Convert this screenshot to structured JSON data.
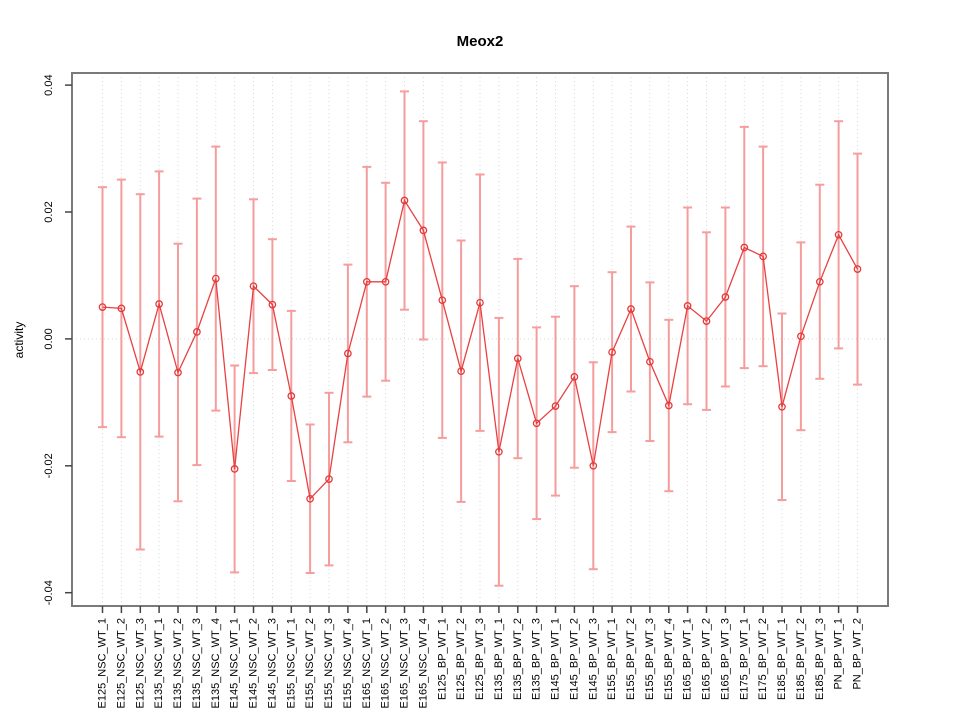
{
  "title": "Meox2",
  "chart_data": {
    "type": "scatter",
    "title": "Meox2",
    "xlabel": "",
    "ylabel": "activity",
    "legend": "none",
    "grid": "vertical dotted gridline at every category; dotted horizontal line at y=0 only",
    "ylim": [
      -0.0421,
      0.0419
    ],
    "yticks": [
      0.04,
      0.02,
      0,
      -0.02,
      -0.04
    ],
    "ytick_labels": [
      "0.04",
      "0.02",
      "0.00",
      "-0.02",
      "-0.04"
    ],
    "point_style": "open circles joined by line segments, vertical error bars with caps",
    "colors": {
      "line": "#e94141",
      "point": "#e23b3b",
      "error_bar": "#f58c8c",
      "border": "#7a7a7a",
      "gridline": "#d9d9d9",
      "tick": "#444444"
    },
    "categories": [
      "E125_NSC_WT_1",
      "E125_NSC_WT_2",
      "E125_NSC_WT_3",
      "E135_NSC_WT_1",
      "E135_NSC_WT_2",
      "E135_NSC_WT_3",
      "E135_NSC_WT_4",
      "E145_NSC_WT_1",
      "E145_NSC_WT_2",
      "E145_NSC_WT_3",
      "E155_NSC_WT_1",
      "E155_NSC_WT_2",
      "E155_NSC_WT_3",
      "E155_NSC_WT_4",
      "E165_NSC_WT_1",
      "E165_NSC_WT_2",
      "E165_NSC_WT_3",
      "E165_NSC_WT_4",
      "E125_BP_WT_1",
      "E125_BP_WT_2",
      "E125_BP_WT_3",
      "E135_BP_WT_1",
      "E135_BP_WT_2",
      "E135_BP_WT_3",
      "E145_BP_WT_1",
      "E145_BP_WT_2",
      "E145_BP_WT_3",
      "E155_BP_WT_1",
      "E155_BP_WT_2",
      "E155_BP_WT_3",
      "E155_BP_WT_4",
      "E165_BP_WT_1",
      "E165_BP_WT_2",
      "E165_BP_WT_3",
      "E175_BP_WT_1",
      "E175_BP_WT_2",
      "E185_BP_WT_1",
      "E185_BP_WT_2",
      "E185_BP_WT_3",
      "PN_BP_WT_1",
      "PN_BP_WT_2"
    ],
    "series": [
      {
        "name": "activity",
        "values": [
          0.005,
          0.0048,
          -0.0052,
          0.0055,
          -0.0053,
          0.0011,
          0.0095,
          -0.0205,
          0.0083,
          0.0054,
          -0.009,
          -0.0252,
          -0.0221,
          -0.0023,
          0.009,
          0.009,
          0.0218,
          0.0171,
          0.0061,
          -0.0051,
          0.0057,
          -0.0178,
          -0.0031,
          -0.0133,
          -0.0106,
          -0.006,
          -0.02,
          -0.0021,
          0.0047,
          -0.0036,
          -0.0105,
          0.0052,
          0.0028,
          0.0066,
          0.0144,
          0.013,
          -0.0107,
          0.0004,
          0.009,
          0.0164,
          0.011
        ],
        "errors": [
          0.0189,
          0.0203,
          0.028,
          0.0209,
          0.0203,
          0.021,
          0.0208,
          0.0163,
          0.0137,
          0.0103,
          0.0134,
          0.0117,
          0.0136,
          0.014,
          0.0181,
          0.0156,
          0.0172,
          0.0172,
          0.0217,
          0.0206,
          0.0202,
          0.0211,
          0.0157,
          0.0151,
          0.0141,
          0.0143,
          0.0163,
          0.0126,
          0.013,
          0.0125,
          0.0135,
          0.0155,
          0.014,
          0.0141,
          0.019,
          0.0173,
          0.0147,
          0.0148,
          0.0153,
          0.0179,
          0.0182
        ]
      }
    ]
  }
}
